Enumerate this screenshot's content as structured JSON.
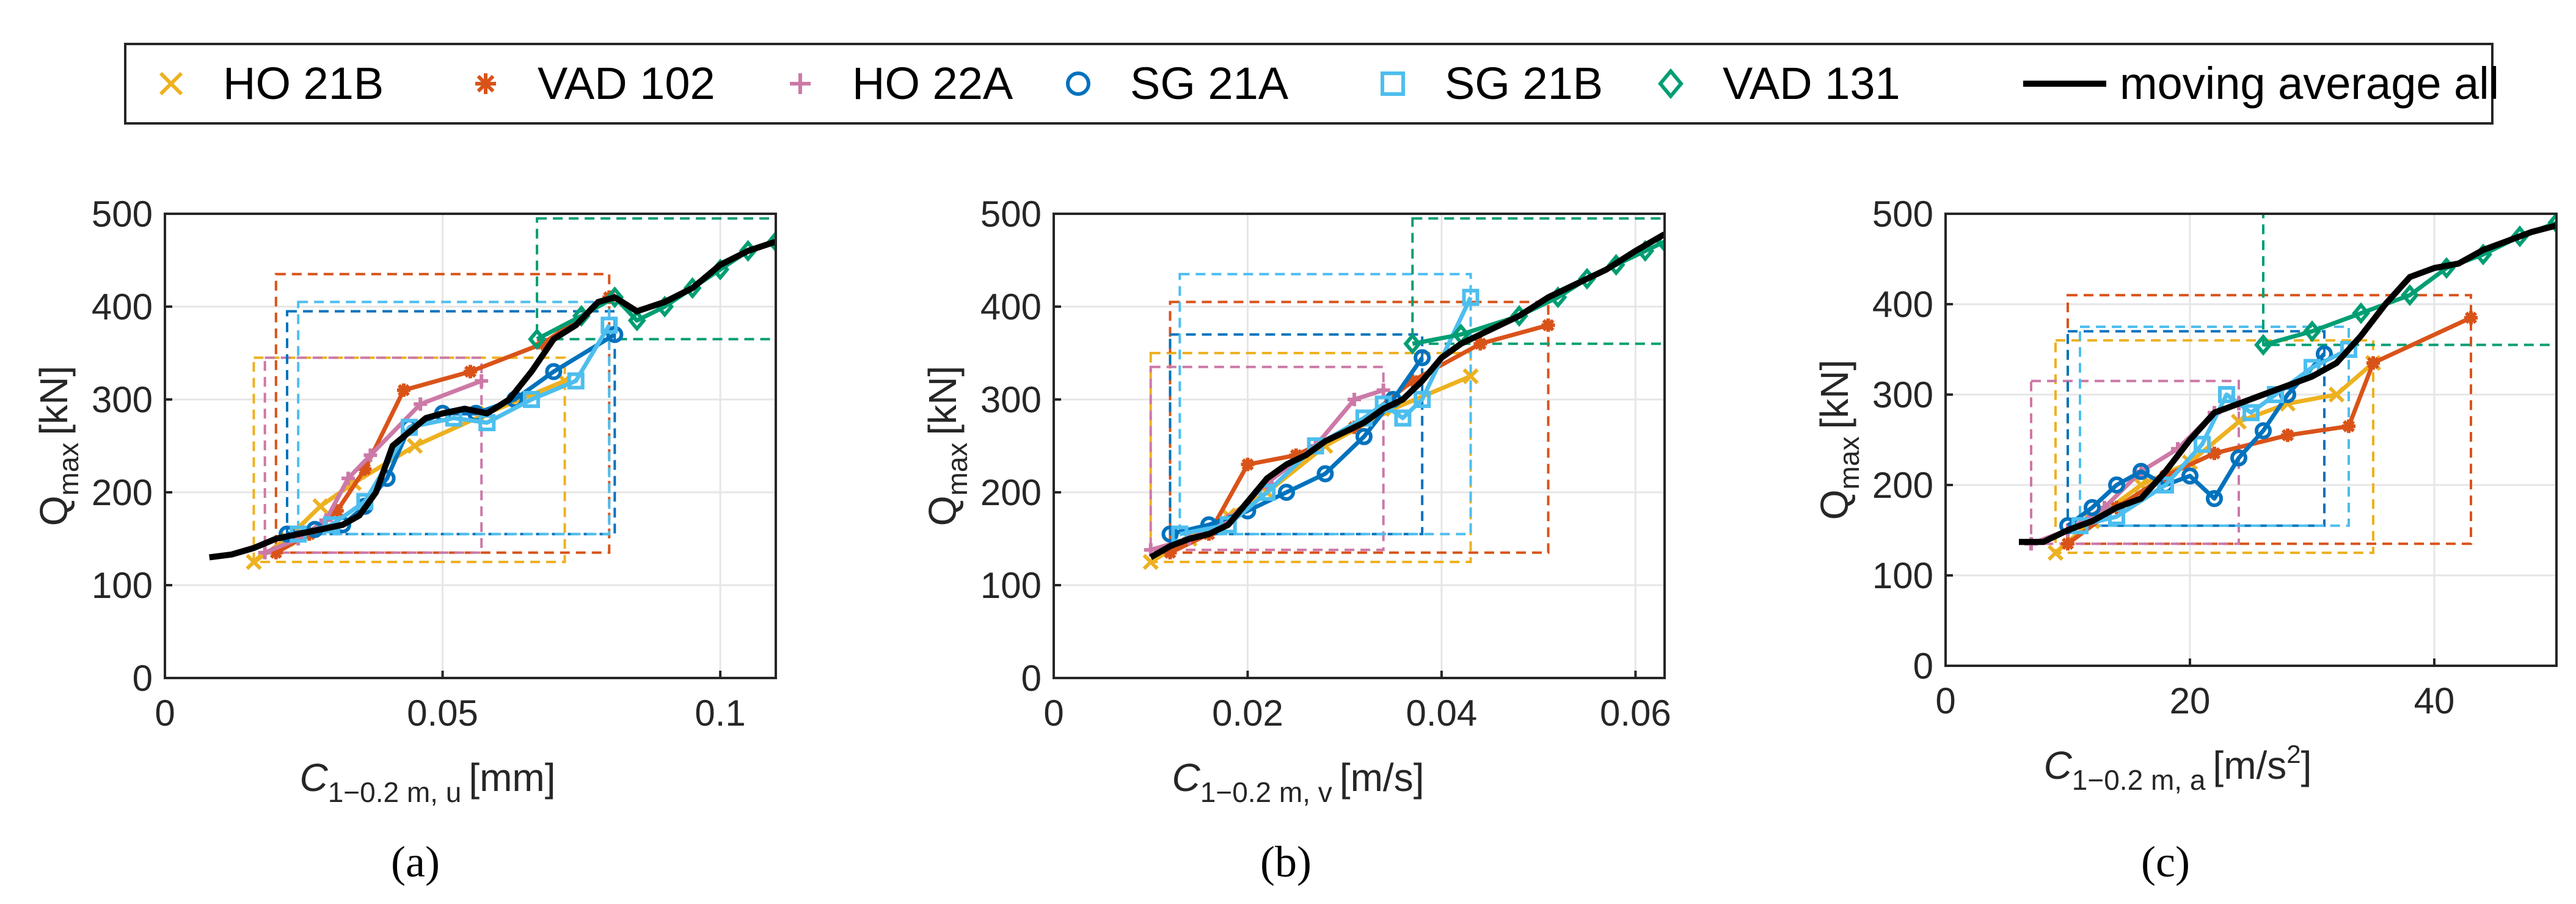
{
  "legend": {
    "entries": [
      {
        "label": "HO 21B",
        "color": "#EDB120",
        "marker": "x-icon"
      },
      {
        "label": "VAD 102",
        "color": "#D95319",
        "marker": "asterisk-icon"
      },
      {
        "label": "HO 22A",
        "color": "#CC79A7",
        "marker": "plus-icon"
      },
      {
        "label": "SG 21A",
        "color": "#0072BD",
        "marker": "circle-icon"
      },
      {
        "label": "SG 21B",
        "color": "#4DBEEE",
        "marker": "square-icon"
      },
      {
        "label": "VAD 131",
        "color": "#009E73",
        "marker": "diamond-icon"
      },
      {
        "label": "moving average all",
        "color": "#000000",
        "marker": "line-icon"
      }
    ]
  },
  "chart_data": [
    {
      "type": "line",
      "caption": "(a)",
      "ylabel_main": "Q",
      "ylabel_sub": "max",
      "ylabel_unit": "[kN]",
      "xlabel_main": "C",
      "xlabel_sub": "1−0.2 m, u",
      "xlabel_unit": "[mm]",
      "xlim": [
        0,
        0.11
      ],
      "ylim": [
        0,
        500
      ],
      "xticks": [
        0,
        0.05,
        0.1
      ],
      "xticklabels": [
        "0",
        "0.05",
        "0.1"
      ],
      "yticks": [
        0,
        100,
        200,
        300,
        400,
        500
      ],
      "yticklabels": [
        "0",
        "100",
        "200",
        "300",
        "400",
        "500"
      ],
      "series": [
        {
          "name": "HO 21B",
          "x": [
            0.016,
            0.022,
            0.028,
            0.034,
            0.045,
            0.058,
            0.072
          ],
          "y": [
            125,
            150,
            185,
            210,
            250,
            285,
            320
          ]
        },
        {
          "name": "VAD 102",
          "x": [
            0.02,
            0.026,
            0.031,
            0.036,
            0.043,
            0.055,
            0.068,
            0.08
          ],
          "y": [
            135,
            155,
            180,
            225,
            310,
            330,
            360,
            410
          ]
        },
        {
          "name": "HO 22A",
          "x": [
            0.018,
            0.024,
            0.029,
            0.033,
            0.037,
            0.046,
            0.057
          ],
          "y": [
            135,
            150,
            170,
            215,
            240,
            295,
            320
          ]
        },
        {
          "name": "SG 21A",
          "x": [
            0.022,
            0.027,
            0.032,
            0.036,
            0.04,
            0.044,
            0.05,
            0.056,
            0.063,
            0.07,
            0.081
          ],
          "y": [
            155,
            160,
            165,
            185,
            215,
            270,
            285,
            285,
            300,
            330,
            370
          ]
        },
        {
          "name": "SG 21B",
          "x": [
            0.024,
            0.03,
            0.036,
            0.044,
            0.052,
            0.058,
            0.066,
            0.074,
            0.08
          ],
          "y": [
            155,
            165,
            190,
            270,
            280,
            275,
            300,
            320,
            380
          ]
        },
        {
          "name": "VAD 131",
          "x": [
            0.067,
            0.075,
            0.081,
            0.085,
            0.09,
            0.095,
            0.1,
            0.105,
            0.11
          ],
          "y": [
            365,
            390,
            410,
            385,
            400,
            420,
            440,
            460,
            470
          ]
        },
        {
          "name": "moving average all",
          "x": [
            0.008,
            0.012,
            0.016,
            0.02,
            0.024,
            0.028,
            0.032,
            0.035,
            0.038,
            0.041,
            0.044,
            0.047,
            0.05,
            0.054,
            0.058,
            0.062,
            0.066,
            0.07,
            0.074,
            0.078,
            0.081,
            0.085,
            0.09,
            0.095,
            0.1,
            0.105,
            0.11
          ],
          "y": [
            130,
            133,
            140,
            150,
            155,
            160,
            165,
            175,
            200,
            250,
            265,
            280,
            285,
            290,
            285,
            300,
            330,
            365,
            380,
            405,
            410,
            395,
            405,
            420,
            445,
            460,
            470
          ]
        }
      ]
    },
    {
      "type": "line",
      "caption": "(b)",
      "ylabel_main": "Q",
      "ylabel_sub": "max",
      "ylabel_unit": "[kN]",
      "xlabel_main": "C",
      "xlabel_sub": "1−0.2 m, v",
      "xlabel_unit": "[m/s]",
      "xlim": [
        0,
        0.063
      ],
      "ylim": [
        0,
        500
      ],
      "xticks": [
        0,
        0.02,
        0.04,
        0.06
      ],
      "xticklabels": [
        "0",
        "0.02",
        "0.04",
        "0.06"
      ],
      "yticks": [
        0,
        100,
        200,
        300,
        400,
        500
      ],
      "yticklabels": [
        "0",
        "100",
        "200",
        "300",
        "400",
        "500"
      ],
      "series": [
        {
          "name": "HO 21B",
          "x": [
            0.01,
            0.014,
            0.018,
            0.022,
            0.028,
            0.035,
            0.043
          ],
          "y": [
            125,
            150,
            175,
            200,
            250,
            290,
            325
          ]
        },
        {
          "name": "VAD 102",
          "x": [
            0.012,
            0.016,
            0.02,
            0.025,
            0.031,
            0.037,
            0.044,
            0.051
          ],
          "y": [
            135,
            155,
            230,
            240,
            270,
            320,
            360,
            380
          ]
        },
        {
          "name": "HO 22A",
          "x": [
            0.01,
            0.014,
            0.018,
            0.022,
            0.027,
            0.031,
            0.034
          ],
          "y": [
            138,
            150,
            170,
            210,
            250,
            300,
            310
          ]
        },
        {
          "name": "SG 21A",
          "x": [
            0.012,
            0.016,
            0.02,
            0.024,
            0.028,
            0.032,
            0.035,
            0.038
          ],
          "y": [
            155,
            165,
            180,
            200,
            220,
            260,
            300,
            345
          ]
        },
        {
          "name": "SG 21B",
          "x": [
            0.013,
            0.018,
            0.022,
            0.027,
            0.032,
            0.034,
            0.036,
            0.038,
            0.043
          ],
          "y": [
            155,
            165,
            200,
            250,
            280,
            295,
            280,
            300,
            410
          ]
        },
        {
          "name": "VAD 131",
          "x": [
            0.037,
            0.042,
            0.048,
            0.052,
            0.055,
            0.058,
            0.061,
            0.063
          ],
          "y": [
            360,
            370,
            390,
            410,
            430,
            445,
            460,
            470
          ]
        },
        {
          "name": "moving average all",
          "x": [
            0.01,
            0.012,
            0.014,
            0.016,
            0.018,
            0.02,
            0.022,
            0.024,
            0.026,
            0.028,
            0.03,
            0.032,
            0.034,
            0.036,
            0.038,
            0.04,
            0.042,
            0.045,
            0.048,
            0.051,
            0.054,
            0.057,
            0.06,
            0.063
          ],
          "y": [
            130,
            142,
            150,
            155,
            165,
            190,
            215,
            230,
            240,
            255,
            265,
            275,
            290,
            300,
            320,
            345,
            360,
            375,
            390,
            410,
            425,
            440,
            460,
            478
          ]
        }
      ]
    },
    {
      "type": "line",
      "caption": "(c)",
      "ylabel_main": "Q",
      "ylabel_sub": "max",
      "ylabel_unit": "[kN]",
      "xlabel_main": "C",
      "xlabel_sub": "1−0.2 m, a",
      "xlabel_unit": "[m/s",
      "xlabel_unit_sup": "2",
      "xlabel_unit_end": "]",
      "xlim": [
        0,
        50
      ],
      "ylim": [
        0,
        500
      ],
      "xticks": [
        0,
        20,
        40
      ],
      "xticklabels": [
        "0",
        "20",
        "40"
      ],
      "yticks": [
        0,
        100,
        200,
        300,
        400,
        500
      ],
      "yticklabels": [
        "0",
        "100",
        "200",
        "300",
        "400",
        "500"
      ],
      "series": [
        {
          "name": "HO 21B",
          "x": [
            9,
            12,
            16,
            20,
            24,
            28,
            32,
            35
          ],
          "y": [
            125,
            160,
            200,
            225,
            270,
            290,
            300,
            335
          ]
        },
        {
          "name": "VAD 102",
          "x": [
            10,
            14,
            18,
            22,
            28,
            33,
            35,
            43
          ],
          "y": [
            135,
            175,
            210,
            235,
            255,
            265,
            335,
            385
          ]
        },
        {
          "name": "HO 22A",
          "x": [
            7,
            10,
            13,
            16,
            19,
            22,
            24
          ],
          "y": [
            135,
            150,
            175,
            215,
            240,
            280,
            290
          ]
        },
        {
          "name": "SG 21A",
          "x": [
            10,
            12,
            14,
            16,
            18,
            20,
            22,
            24,
            26,
            28,
            31
          ],
          "y": [
            155,
            175,
            200,
            215,
            200,
            210,
            185,
            230,
            260,
            300,
            345
          ]
        },
        {
          "name": "SG 21B",
          "x": [
            11,
            14,
            18,
            21,
            23,
            25,
            27,
            30,
            33
          ],
          "y": [
            155,
            165,
            200,
            245,
            300,
            280,
            300,
            330,
            350
          ]
        },
        {
          "name": "VAD 131",
          "x": [
            26,
            30,
            34,
            38,
            41,
            44,
            47,
            50
          ],
          "y": [
            355,
            370,
            390,
            410,
            440,
            455,
            475,
            490
          ]
        },
        {
          "name": "moving average all",
          "x": [
            6,
            8,
            10,
            12,
            14,
            16,
            18,
            20,
            22,
            24,
            26,
            28,
            30,
            32,
            34,
            36,
            38,
            40,
            42,
            44,
            46,
            48,
            50
          ],
          "y": [
            137,
            137,
            150,
            160,
            175,
            185,
            215,
            250,
            280,
            290,
            300,
            310,
            320,
            335,
            365,
            400,
            430,
            440,
            445,
            460,
            470,
            480,
            487
          ]
        }
      ]
    }
  ]
}
